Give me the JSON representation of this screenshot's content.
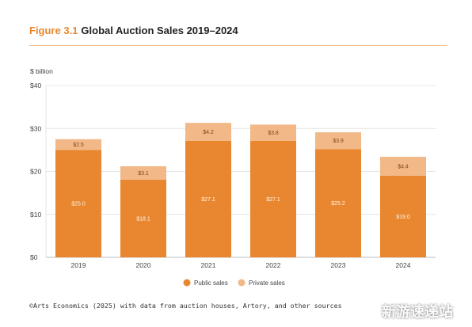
{
  "figure": {
    "number": "Figure 3.1",
    "title": "Global Auction Sales 2019–2024"
  },
  "colors": {
    "public": "#e8872f",
    "private": "#f2b887",
    "accent": "#e8862e"
  },
  "chart_data": {
    "type": "bar",
    "stacked": true,
    "ylabel": "$ billion",
    "ylim": [
      0,
      40
    ],
    "yticks": [
      {
        "value": 0,
        "label": "$0"
      },
      {
        "value": 10,
        "label": "$10"
      },
      {
        "value": 20,
        "label": "$20"
      },
      {
        "value": 30,
        "label": "$30"
      },
      {
        "value": 40,
        "label": "$40"
      }
    ],
    "categories": [
      "2019",
      "2020",
      "2021",
      "2022",
      "2023",
      "2024"
    ],
    "series": [
      {
        "name": "Public sales",
        "values": [
          25.0,
          18.1,
          27.1,
          27.1,
          25.2,
          19.0
        ],
        "labels": [
          "$25.0",
          "$18.1",
          "$27.1",
          "$27.1",
          "$25.2",
          "$19.0"
        ]
      },
      {
        "name": "Private sales",
        "values": [
          2.5,
          3.1,
          4.2,
          3.8,
          3.9,
          4.4
        ],
        "labels": [
          "$2.5",
          "$3.1",
          "$4.2",
          "$3.8",
          "$3.9",
          "$4.4"
        ]
      }
    ],
    "grid": true,
    "legend": "bottom-center"
  },
  "source": "©Arts Economics (2025) with data from auction houses, Artory, and other sources",
  "watermark": "新游速递站"
}
